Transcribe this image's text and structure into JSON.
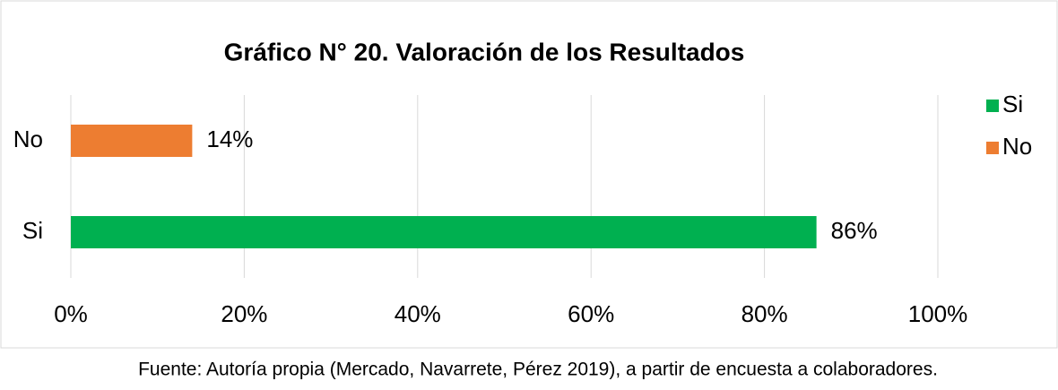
{
  "chart_data": {
    "type": "bar",
    "orientation": "horizontal",
    "title": "Gráfico N° 20. Valoración de los Resultados",
    "categories": [
      "Si",
      "No"
    ],
    "values": [
      86,
      14
    ],
    "value_labels": [
      "86%",
      "14%"
    ],
    "colors": [
      "#00b050",
      "#ed7d31"
    ],
    "xlim": [
      0,
      100
    ],
    "xticks": [
      {
        "value": 0,
        "label": "0%"
      },
      {
        "value": 20,
        "label": "20%"
      },
      {
        "value": 40,
        "label": "40%"
      },
      {
        "value": 60,
        "label": "60%"
      },
      {
        "value": 80,
        "label": "80%"
      },
      {
        "value": 100,
        "label": "100%"
      }
    ],
    "grid": true,
    "legend": "right",
    "caption": "Fuente: Autoría propia (Mercado, Navarrete, Pérez 2019), a partir de encuesta a colaboradores."
  }
}
